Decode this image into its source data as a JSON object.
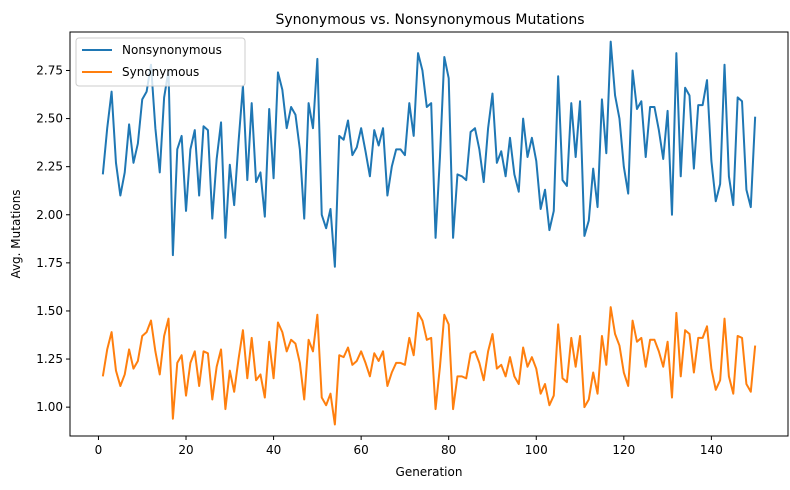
{
  "chart_data": {
    "type": "line",
    "title": "Synonymous vs. Nonsynonymous Mutations",
    "xlabel": "Generation",
    "ylabel": "Avg. Mutations",
    "xlim": [
      -6.5,
      157.5
    ],
    "ylim": [
      0.85,
      2.95
    ],
    "xticks": [
      0,
      20,
      40,
      60,
      80,
      100,
      120,
      140
    ],
    "xtick_labels": [
      "0",
      "20",
      "40",
      "60",
      "80",
      "100",
      "120",
      "140"
    ],
    "yticks": [
      1.0,
      1.25,
      1.5,
      1.75,
      2.0,
      2.25,
      2.5,
      2.75
    ],
    "ytick_labels": [
      "1.00",
      "1.25",
      "1.50",
      "1.75",
      "2.00",
      "2.25",
      "2.50",
      "2.75"
    ],
    "grid": false,
    "legend_position": "top-left",
    "x": [
      1,
      2,
      3,
      4,
      5,
      6,
      7,
      8,
      9,
      10,
      11,
      12,
      13,
      14,
      15,
      16,
      17,
      18,
      19,
      20,
      21,
      22,
      23,
      24,
      25,
      26,
      27,
      28,
      29,
      30,
      31,
      32,
      33,
      34,
      35,
      36,
      37,
      38,
      39,
      40,
      41,
      42,
      43,
      44,
      45,
      46,
      47,
      48,
      49,
      50,
      51,
      52,
      53,
      54,
      55,
      56,
      57,
      58,
      59,
      60,
      61,
      62,
      63,
      64,
      65,
      66,
      67,
      68,
      69,
      70,
      71,
      72,
      73,
      74,
      75,
      76,
      77,
      78,
      79,
      80,
      81,
      82,
      83,
      84,
      85,
      86,
      87,
      88,
      89,
      90,
      91,
      92,
      93,
      94,
      95,
      96,
      97,
      98,
      99,
      100,
      101,
      102,
      103,
      104,
      105,
      106,
      107,
      108,
      109,
      110,
      111,
      112,
      113,
      114,
      115,
      116,
      117,
      118,
      119,
      120,
      121,
      122,
      123,
      124,
      125,
      126,
      127,
      128,
      129,
      130,
      131,
      132,
      133,
      134,
      135,
      136,
      137,
      138,
      139,
      140,
      141,
      142,
      143,
      144,
      145,
      146,
      147,
      148,
      149,
      150
    ],
    "series": [
      {
        "name": "Nonsynonymous",
        "color": "#1f77b4",
        "values": [
          2.21,
          2.45,
          2.64,
          2.27,
          2.1,
          2.22,
          2.47,
          2.27,
          2.37,
          2.6,
          2.64,
          2.78,
          2.45,
          2.22,
          2.61,
          2.75,
          1.79,
          2.34,
          2.41,
          2.02,
          2.34,
          2.44,
          2.1,
          2.46,
          2.44,
          1.98,
          2.29,
          2.48,
          1.88,
          2.26,
          2.05,
          2.38,
          2.67,
          2.18,
          2.58,
          2.17,
          2.22,
          1.99,
          2.55,
          2.19,
          2.74,
          2.65,
          2.45,
          2.56,
          2.52,
          2.34,
          1.98,
          2.58,
          2.45,
          2.81,
          2.0,
          1.93,
          2.03,
          1.73,
          2.41,
          2.39,
          2.49,
          2.31,
          2.35,
          2.45,
          2.33,
          2.2,
          2.44,
          2.36,
          2.45,
          2.1,
          2.25,
          2.34,
          2.34,
          2.31,
          2.58,
          2.41,
          2.84,
          2.75,
          2.56,
          2.58,
          1.88,
          2.3,
          2.82,
          2.71,
          1.88,
          2.21,
          2.2,
          2.18,
          2.43,
          2.45,
          2.34,
          2.17,
          2.45,
          2.63,
          2.27,
          2.33,
          2.2,
          2.4,
          2.21,
          2.12,
          2.5,
          2.3,
          2.4,
          2.28,
          2.03,
          2.13,
          1.92,
          2.02,
          2.72,
          2.18,
          2.15,
          2.58,
          2.3,
          2.59,
          1.89,
          1.97,
          2.24,
          2.04,
          2.6,
          2.32,
          2.9,
          2.62,
          2.5,
          2.25,
          2.11,
          2.75,
          2.55,
          2.59,
          2.3,
          2.56,
          2.56,
          2.44,
          2.29,
          2.54,
          2.0,
          2.84,
          2.2,
          2.66,
          2.62,
          2.24,
          2.57,
          2.57,
          2.7,
          2.28,
          2.07,
          2.16,
          2.78,
          2.2,
          2.05,
          2.61,
          2.59,
          2.13,
          2.04,
          2.51
        ]
      },
      {
        "name": "Synonymous",
        "color": "#ff7f0e",
        "values": [
          1.16,
          1.3,
          1.39,
          1.19,
          1.11,
          1.17,
          1.3,
          1.2,
          1.24,
          1.37,
          1.39,
          1.45,
          1.29,
          1.17,
          1.37,
          1.46,
          0.94,
          1.23,
          1.27,
          1.06,
          1.23,
          1.29,
          1.11,
          1.29,
          1.28,
          1.04,
          1.21,
          1.3,
          0.99,
          1.19,
          1.08,
          1.25,
          1.4,
          1.15,
          1.36,
          1.14,
          1.17,
          1.05,
          1.34,
          1.15,
          1.44,
          1.39,
          1.29,
          1.35,
          1.33,
          1.23,
          1.04,
          1.35,
          1.29,
          1.48,
          1.05,
          1.01,
          1.07,
          0.91,
          1.27,
          1.26,
          1.31,
          1.22,
          1.24,
          1.29,
          1.23,
          1.16,
          1.28,
          1.24,
          1.29,
          1.11,
          1.18,
          1.23,
          1.23,
          1.22,
          1.36,
          1.27,
          1.49,
          1.45,
          1.35,
          1.36,
          0.99,
          1.21,
          1.48,
          1.43,
          0.99,
          1.16,
          1.16,
          1.15,
          1.28,
          1.29,
          1.23,
          1.14,
          1.29,
          1.38,
          1.2,
          1.22,
          1.16,
          1.26,
          1.16,
          1.12,
          1.31,
          1.21,
          1.26,
          1.2,
          1.07,
          1.12,
          1.01,
          1.06,
          1.43,
          1.15,
          1.13,
          1.36,
          1.21,
          1.37,
          1.0,
          1.04,
          1.18,
          1.07,
          1.37,
          1.22,
          1.52,
          1.38,
          1.32,
          1.18,
          1.11,
          1.45,
          1.34,
          1.36,
          1.21,
          1.35,
          1.35,
          1.29,
          1.21,
          1.34,
          1.05,
          1.49,
          1.16,
          1.4,
          1.38,
          1.18,
          1.36,
          1.36,
          1.42,
          1.2,
          1.09,
          1.14,
          1.46,
          1.16,
          1.07,
          1.37,
          1.36,
          1.12,
          1.08,
          1.32
        ]
      }
    ]
  }
}
